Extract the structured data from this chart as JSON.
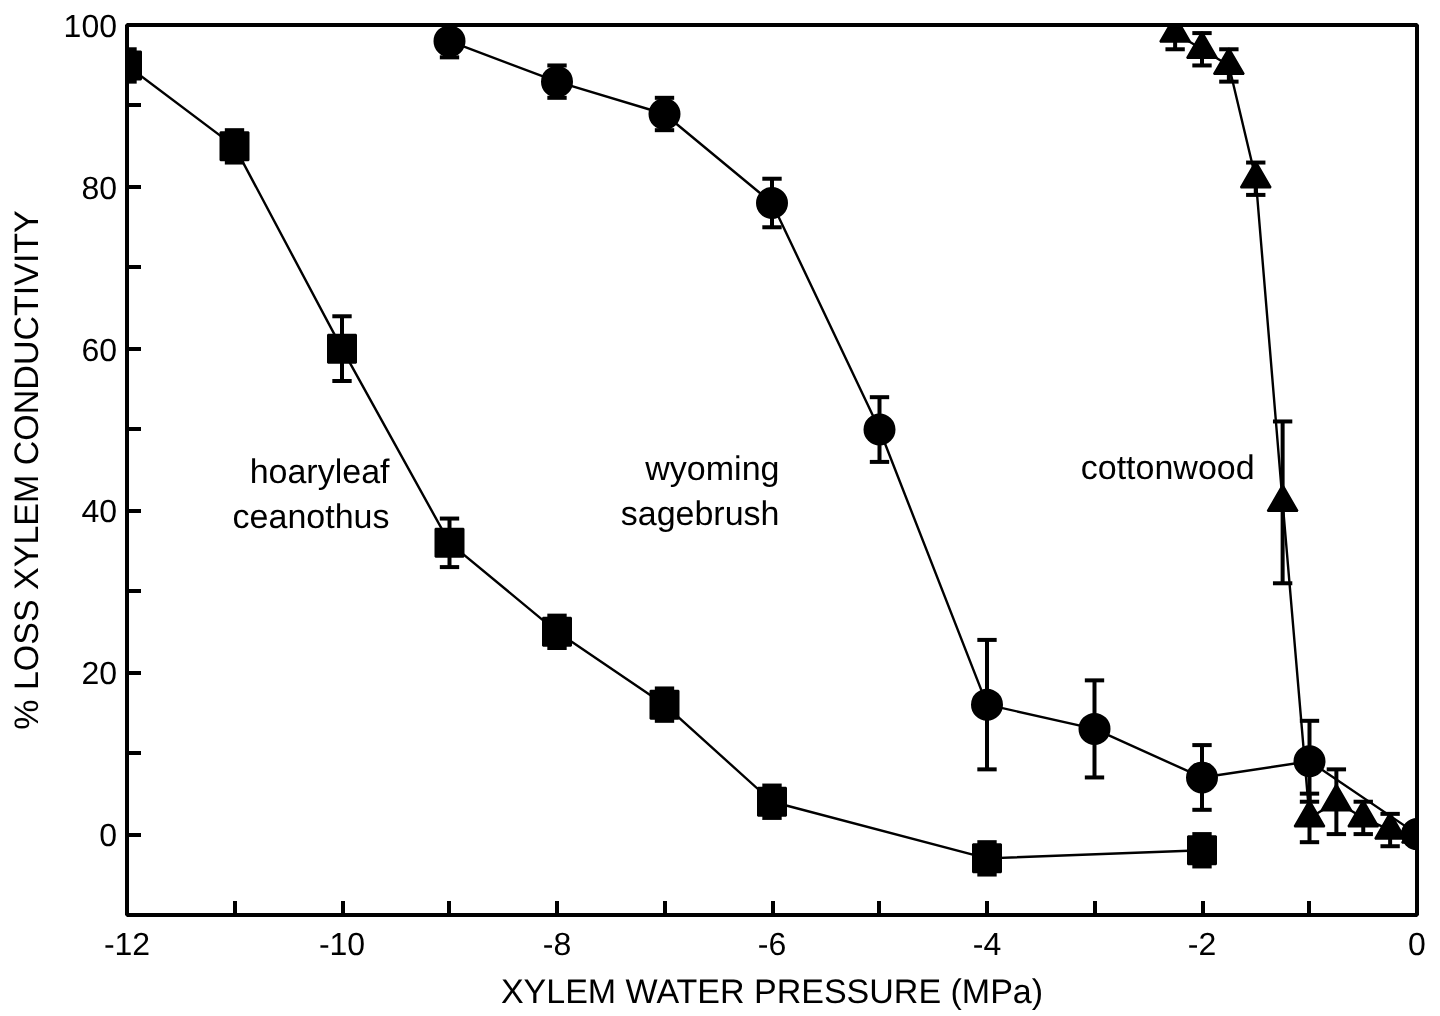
{
  "chart_data": {
    "type": "line",
    "xlabel": "XYLEM WATER PRESSURE (MPa)",
    "ylabel": "% LOSS XYLEM CONDUCTIVITY",
    "xlim": [
      -12,
      0
    ],
    "ylim": [
      -10,
      100
    ],
    "xticks": [
      -12,
      {
        "value": -11,
        "label": null
      },
      -10,
      {
        "value": -9,
        "label": null
      },
      -8,
      {
        "value": -7,
        "label": null
      },
      -6,
      {
        "value": -5,
        "label": null
      },
      -4,
      {
        "value": -3,
        "label": null
      },
      -2,
      {
        "value": -1,
        "label": null
      },
      0
    ],
    "yticks": [
      0,
      {
        "value": 10,
        "label": null
      },
      20,
      {
        "value": 30,
        "label": null
      },
      40,
      {
        "value": 50,
        "label": null
      },
      60,
      {
        "value": 70,
        "label": null
      },
      80,
      {
        "value": 90,
        "label": null
      },
      100
    ],
    "grid": false,
    "legend": false,
    "line_style": "solid",
    "series": [
      {
        "name": "hoaryleaf ceanothus",
        "color": "#000000",
        "marker": "square",
        "x": [
          -12,
          -11,
          -10,
          -9,
          -8,
          -7,
          -6,
          -4,
          -2
        ],
        "values": [
          95,
          85,
          60,
          36,
          25,
          16,
          4,
          -3,
          -2
        ],
        "errors": [
          2,
          2,
          4,
          3,
          2,
          2,
          2,
          2,
          2
        ]
      },
      {
        "name": "wyoming sagebrush",
        "color": "#000000",
        "marker": "circle",
        "x": [
          -9,
          -8,
          -7,
          -6,
          -5,
          -4,
          -3,
          -2,
          -1,
          0
        ],
        "values": [
          98,
          93,
          89,
          78,
          50,
          16,
          13,
          7,
          9,
          0
        ],
        "errors": [
          2,
          2,
          2,
          3,
          4,
          8,
          6,
          4,
          5,
          null
        ]
      },
      {
        "name": "cottonwood",
        "color": "#000000",
        "marker": "triangle",
        "x": [
          -2.25,
          -2,
          -1.75,
          -1.5,
          -1.25,
          -1,
          -0.75,
          -0.5,
          -0.25,
          0
        ],
        "values": [
          99,
          97,
          95,
          81,
          41,
          2,
          4,
          2,
          0.5,
          0
        ],
        "errors": [
          2,
          2,
          2,
          2,
          10,
          3,
          4,
          2,
          2,
          null
        ]
      }
    ]
  }
}
